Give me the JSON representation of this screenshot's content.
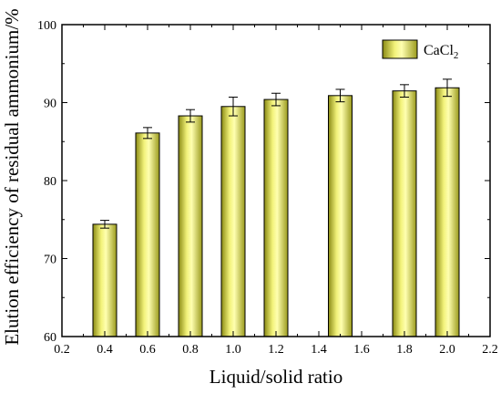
{
  "chart_data": {
    "type": "bar",
    "x": [
      0.4,
      0.6,
      0.8,
      1.0,
      1.2,
      1.5,
      1.8,
      2.0
    ],
    "values": [
      74.4,
      86.1,
      88.3,
      89.5,
      90.4,
      90.9,
      91.5,
      91.9
    ],
    "errors": [
      0.5,
      0.7,
      0.8,
      1.2,
      0.8,
      0.8,
      0.8,
      1.1
    ],
    "series": [
      {
        "name": "CaCl2",
        "color": "#e8e85a"
      }
    ],
    "xlabel": "Liquid/solid ratio",
    "ylabel": "Elution efficiency of residual ammonium/%",
    "xlim": [
      0.2,
      2.2
    ],
    "ylim": [
      60,
      100
    ],
    "xticks": [
      "0.2",
      "0.4",
      "0.6",
      "0.8",
      "1.0",
      "1.2",
      "1.4",
      "1.6",
      "1.8",
      "2.0",
      "2.2"
    ],
    "yticks": [
      "60",
      "70",
      "80",
      "90",
      "100"
    ],
    "legend": {
      "label_main": "CaCl",
      "label_sub": "2",
      "placement": "top-right"
    },
    "grid": false
  }
}
